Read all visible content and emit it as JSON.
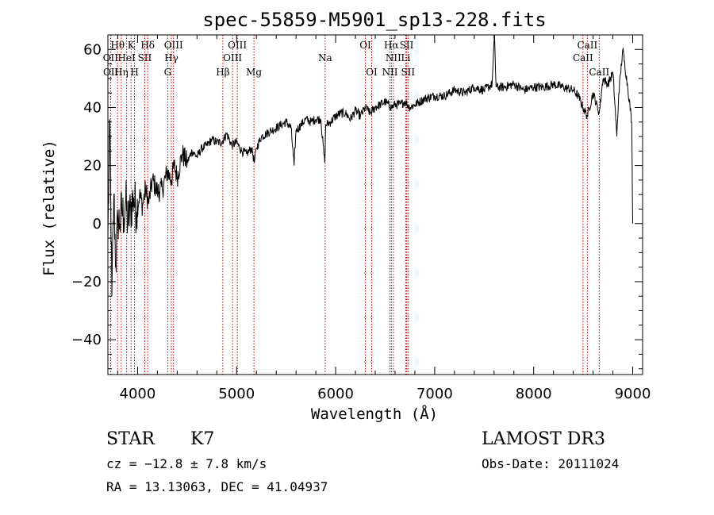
{
  "chart_data": {
    "type": "line",
    "title": "spec-55859-M5901_sp13-228.fits",
    "xlabel": "Wavelength (Å)",
    "ylabel": "Flux (relative)",
    "xlim": [
      3700,
      9100
    ],
    "ylim": [
      -52,
      65
    ],
    "xticks": [
      4000,
      5000,
      6000,
      7000,
      8000,
      9000
    ],
    "yticks": [
      -40,
      -20,
      0,
      20,
      40,
      60
    ],
    "series": [
      {
        "name": "spectrum",
        "x": [
          3700,
          3720,
          3740,
          3760,
          3780,
          3800,
          3820,
          3840,
          3860,
          3880,
          3900,
          3930,
          3960,
          3990,
          4020,
          4050,
          4080,
          4110,
          4150,
          4200,
          4250,
          4300,
          4340,
          4370,
          4400,
          4450,
          4500,
          4550,
          4600,
          4650,
          4700,
          4750,
          4800,
          4850,
          4900,
          4950,
          5000,
          5050,
          5100,
          5150,
          5180,
          5200,
          5250,
          5300,
          5350,
          5400,
          5450,
          5500,
          5550,
          5580,
          5600,
          5650,
          5700,
          5750,
          5800,
          5850,
          5890,
          5900,
          5950,
          6000,
          6050,
          6100,
          6150,
          6200,
          6250,
          6300,
          6350,
          6400,
          6450,
          6500,
          6563,
          6600,
          6650,
          6700,
          6750,
          6800,
          6900,
          7000,
          7100,
          7200,
          7300,
          7400,
          7500,
          7580,
          7605,
          7620,
          7700,
          7800,
          7900,
          8000,
          8100,
          8200,
          8300,
          8400,
          8450,
          8498,
          8542,
          8600,
          8662,
          8700,
          8750,
          8800,
          8840,
          8860,
          8900,
          8950,
          8990,
          9000
        ],
        "y": [
          -5,
          35,
          -25,
          10,
          -15,
          2,
          0,
          5,
          2,
          8,
          0,
          5,
          9,
          4,
          10,
          6,
          12,
          7,
          15,
          11,
          12,
          18,
          15,
          20,
          16,
          24,
          21,
          25,
          23,
          26,
          27,
          29,
          28,
          28,
          31,
          27,
          28,
          25,
          24,
          26,
          21,
          26,
          30,
          31,
          32,
          33,
          34,
          35,
          33,
          20,
          32,
          34,
          36,
          35,
          36,
          36,
          21,
          34,
          35,
          37,
          38,
          38,
          36,
          39,
          37,
          40,
          38,
          40,
          41,
          42,
          40,
          41,
          41,
          42,
          40,
          41,
          43,
          44,
          44,
          46,
          45,
          47,
          46,
          48,
          65,
          47,
          47,
          48,
          46,
          47,
          47,
          48,
          47,
          46,
          44,
          40,
          37,
          45,
          38,
          50,
          48,
          52,
          30,
          45,
          60,
          47,
          35,
          0
        ]
      }
    ],
    "spectral_lines": [
      {
        "label": "Hθ",
        "wavelength": 3798,
        "row": 1
      },
      {
        "label": "OII",
        "wavelength": 3727,
        "row": 2
      },
      {
        "label": "OII",
        "wavelength": 3729,
        "row": 3
      },
      {
        "label": "Hη",
        "wavelength": 3835,
        "row": 3
      },
      {
        "label": "HeI",
        "wavelength": 3889,
        "row": 2
      },
      {
        "label": "K",
        "wavelength": 3934,
        "row": 1
      },
      {
        "label": "H",
        "wavelength": 3969,
        "row": 3
      },
      {
        "label": "SII",
        "wavelength": 4072,
        "row": 2
      },
      {
        "label": "Hδ",
        "wavelength": 4102,
        "row": 1
      },
      {
        "label": "OIII",
        "wavelength": 4363,
        "row": 1
      },
      {
        "label": "Hγ",
        "wavelength": 4341,
        "row": 2
      },
      {
        "label": "G",
        "wavelength": 4304,
        "row": 3
      },
      {
        "label": "Hβ",
        "wavelength": 4861,
        "row": 3
      },
      {
        "label": "OIII",
        "wavelength": 5007,
        "row": 1
      },
      {
        "label": "OIII",
        "wavelength": 4959,
        "row": 2
      },
      {
        "label": "Mg",
        "wavelength": 5175,
        "row": 3
      },
      {
        "label": "Na",
        "wavelength": 5894,
        "row": 2
      },
      {
        "label": "OI",
        "wavelength": 6300,
        "row": 1
      },
      {
        "label": "OI",
        "wavelength": 6364,
        "row": 3
      },
      {
        "label": "Hα",
        "wavelength": 6563,
        "row": 1
      },
      {
        "label": "NII",
        "wavelength": 6583,
        "row": 2
      },
      {
        "label": "NII",
        "wavelength": 6548,
        "row": 3
      },
      {
        "label": "SII",
        "wavelength": 6717,
        "row": 1
      },
      {
        "label": "Li",
        "wavelength": 6708,
        "row": 2
      },
      {
        "label": "SII",
        "wavelength": 6731,
        "row": 3
      },
      {
        "label": "CaII",
        "wavelength": 8542,
        "row": 1
      },
      {
        "label": "CaII",
        "wavelength": 8498,
        "row": 2
      },
      {
        "label": "CaII",
        "wavelength": 8662,
        "row": 3
      }
    ]
  },
  "info": {
    "class": "STAR",
    "subclass": "K7",
    "survey": "LAMOST DR3",
    "redshift": "cz = −12.8 ± 7.8 km/s",
    "obs_date": "Obs-Date: 20111024",
    "coords": "RA =  13.13063, DEC =  41.04937"
  },
  "colors": {
    "spectrum": "#000000",
    "line_marker": "#c00000"
  }
}
